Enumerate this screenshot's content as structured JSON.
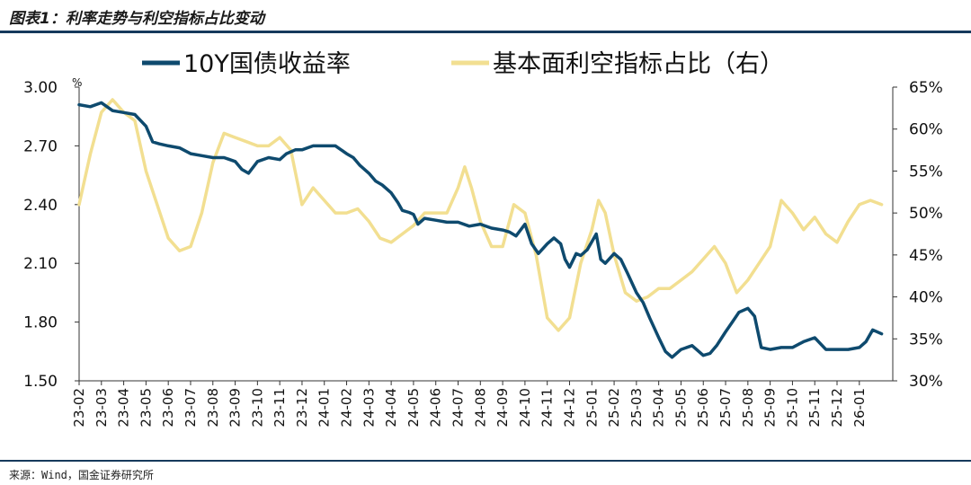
{
  "header": {
    "title": "图表1：利率走势与利空指标占比变动"
  },
  "footer": {
    "source": "来源：Wind，国金证券研究所"
  },
  "colors": {
    "series1": "#0e4a6e",
    "series2": "#f2df91",
    "rule": "#163a5c"
  },
  "chart_data": {
    "type": "line",
    "title": "利率走势与利空指标占比变动",
    "legend_position": "top",
    "grid": false,
    "y_left": {
      "unit": "%",
      "lim": [
        1.5,
        3.0
      ],
      "ticks": [
        "3.00",
        "2.70",
        "2.40",
        "2.10",
        "1.80",
        "1.50"
      ]
    },
    "y_right": {
      "lim": [
        30,
        65
      ],
      "ticks": [
        "65%",
        "60%",
        "55%",
        "50%",
        "45%",
        "40%",
        "35%",
        "30%"
      ]
    },
    "x_range": [
      0,
      36.5
    ],
    "categories": [
      "23-02",
      "23-03",
      "23-04",
      "23-05",
      "23-06",
      "23-07",
      "23-08",
      "23-09",
      "23-10",
      "23-11",
      "23-12",
      "24-01",
      "24-02",
      "24-03",
      "24-04",
      "24-05",
      "24-06",
      "24-07",
      "24-08",
      "24-09",
      "24-10",
      "24-11",
      "24-12",
      "25-01",
      "25-02",
      "25-03",
      "25-04",
      "25-05",
      "25-06",
      "25-07",
      "25-08",
      "25-09",
      "25-10",
      "25-11",
      "25-12",
      "26-01"
    ],
    "series": [
      {
        "name": "10Y国债收益率",
        "axis": "left",
        "color": "#0e4a6e",
        "points": [
          [
            0,
            2.91
          ],
          [
            0.5,
            2.9
          ],
          [
            1,
            2.92
          ],
          [
            1.5,
            2.88
          ],
          [
            2,
            2.87
          ],
          [
            2.5,
            2.86
          ],
          [
            3,
            2.8
          ],
          [
            3.3,
            2.72
          ],
          [
            3.6,
            2.71
          ],
          [
            4,
            2.7
          ],
          [
            4.5,
            2.69
          ],
          [
            5,
            2.66
          ],
          [
            5.5,
            2.65
          ],
          [
            6,
            2.64
          ],
          [
            6.5,
            2.64
          ],
          [
            7,
            2.62
          ],
          [
            7.3,
            2.58
          ],
          [
            7.6,
            2.56
          ],
          [
            8,
            2.62
          ],
          [
            8.5,
            2.64
          ],
          [
            9,
            2.63
          ],
          [
            9.3,
            2.66
          ],
          [
            9.7,
            2.68
          ],
          [
            10,
            2.68
          ],
          [
            10.5,
            2.7
          ],
          [
            11,
            2.7
          ],
          [
            11.5,
            2.7
          ],
          [
            12,
            2.66
          ],
          [
            12.3,
            2.64
          ],
          [
            12.6,
            2.6
          ],
          [
            13,
            2.56
          ],
          [
            13.3,
            2.52
          ],
          [
            13.6,
            2.5
          ],
          [
            14,
            2.46
          ],
          [
            14.3,
            2.41
          ],
          [
            14.5,
            2.37
          ],
          [
            14.8,
            2.36
          ],
          [
            15,
            2.35
          ],
          [
            15.2,
            2.3
          ],
          [
            15.5,
            2.33
          ],
          [
            16,
            2.32
          ],
          [
            16.5,
            2.31
          ],
          [
            17,
            2.31
          ],
          [
            17.5,
            2.29
          ],
          [
            18,
            2.3
          ],
          [
            18.5,
            2.28
          ],
          [
            19,
            2.27
          ],
          [
            19.3,
            2.26
          ],
          [
            19.6,
            2.24
          ],
          [
            20,
            2.3
          ],
          [
            20.3,
            2.2
          ],
          [
            20.6,
            2.15
          ],
          [
            21,
            2.2
          ],
          [
            21.3,
            2.23
          ],
          [
            21.6,
            2.2
          ],
          [
            21.8,
            2.12
          ],
          [
            22,
            2.08
          ],
          [
            22.3,
            2.15
          ],
          [
            22.5,
            2.14
          ],
          [
            22.8,
            2.17
          ],
          [
            23.2,
            2.25
          ],
          [
            23.4,
            2.12
          ],
          [
            23.6,
            2.1
          ],
          [
            24,
            2.15
          ],
          [
            24.3,
            2.12
          ],
          [
            24.6,
            2.05
          ],
          [
            25,
            1.95
          ],
          [
            25.3,
            1.9
          ],
          [
            25.6,
            1.82
          ],
          [
            26,
            1.72
          ],
          [
            26.3,
            1.65
          ],
          [
            26.6,
            1.62
          ],
          [
            27,
            1.66
          ],
          [
            27.5,
            1.68
          ],
          [
            28,
            1.63
          ],
          [
            28.3,
            1.64
          ],
          [
            28.6,
            1.68
          ],
          [
            29,
            1.75
          ],
          [
            29.3,
            1.8
          ],
          [
            29.6,
            1.85
          ],
          [
            30,
            1.87
          ],
          [
            30.3,
            1.83
          ],
          [
            30.6,
            1.67
          ],
          [
            31,
            1.66
          ],
          [
            31.5,
            1.67
          ],
          [
            32,
            1.67
          ],
          [
            32.5,
            1.7
          ],
          [
            33,
            1.72
          ],
          [
            33.5,
            1.66
          ],
          [
            34,
            1.66
          ],
          [
            34.5,
            1.66
          ],
          [
            35,
            1.67
          ],
          [
            35.3,
            1.7
          ],
          [
            35.6,
            1.76
          ],
          [
            36,
            1.74
          ]
        ]
      },
      {
        "name": "基本面利空指标占比（右）",
        "axis": "right",
        "color": "#f2df91",
        "points": [
          [
            0,
            51
          ],
          [
            0.5,
            57
          ],
          [
            1,
            62
          ],
          [
            1.5,
            63.5
          ],
          [
            2,
            62
          ],
          [
            2.5,
            61
          ],
          [
            3,
            55
          ],
          [
            3.5,
            51
          ],
          [
            4,
            47
          ],
          [
            4.5,
            45.5
          ],
          [
            5,
            46
          ],
          [
            5.5,
            50
          ],
          [
            6,
            56
          ],
          [
            6.5,
            59.5
          ],
          [
            7,
            59
          ],
          [
            7.5,
            58.5
          ],
          [
            8,
            58
          ],
          [
            8.5,
            58
          ],
          [
            9,
            59
          ],
          [
            9.5,
            57.5
          ],
          [
            10,
            51
          ],
          [
            10.5,
            53
          ],
          [
            11,
            51.5
          ],
          [
            11.5,
            50
          ],
          [
            12,
            50
          ],
          [
            12.5,
            50.5
          ],
          [
            13,
            49
          ],
          [
            13.5,
            47
          ],
          [
            14,
            46.5
          ],
          [
            14.5,
            47.5
          ],
          [
            15,
            48.5
          ],
          [
            15.5,
            50
          ],
          [
            16,
            50
          ],
          [
            16.5,
            50
          ],
          [
            17,
            53
          ],
          [
            17.3,
            55.5
          ],
          [
            17.6,
            53
          ],
          [
            18,
            49
          ],
          [
            18.5,
            46
          ],
          [
            19,
            46
          ],
          [
            19.5,
            51
          ],
          [
            20,
            50
          ],
          [
            20.5,
            45
          ],
          [
            21,
            37.5
          ],
          [
            21.5,
            36
          ],
          [
            22,
            37.5
          ],
          [
            22.5,
            44
          ],
          [
            23,
            48
          ],
          [
            23.3,
            51.5
          ],
          [
            23.6,
            50
          ],
          [
            24,
            45
          ],
          [
            24.5,
            40.5
          ],
          [
            25,
            39.5
          ],
          [
            25.5,
            40
          ],
          [
            26,
            41
          ],
          [
            26.5,
            41
          ],
          [
            27,
            42
          ],
          [
            27.5,
            43
          ],
          [
            28,
            44.5
          ],
          [
            28.5,
            46
          ],
          [
            29,
            44
          ],
          [
            29.5,
            40.5
          ],
          [
            30,
            42
          ],
          [
            30.5,
            44
          ],
          [
            31,
            46
          ],
          [
            31.5,
            51.5
          ],
          [
            32,
            50
          ],
          [
            32.5,
            48
          ],
          [
            33,
            49.5
          ],
          [
            33.5,
            47.5
          ],
          [
            34,
            46.5
          ],
          [
            34.5,
            49
          ],
          [
            35,
            51
          ],
          [
            35.5,
            51.5
          ],
          [
            36,
            51
          ]
        ]
      }
    ]
  }
}
